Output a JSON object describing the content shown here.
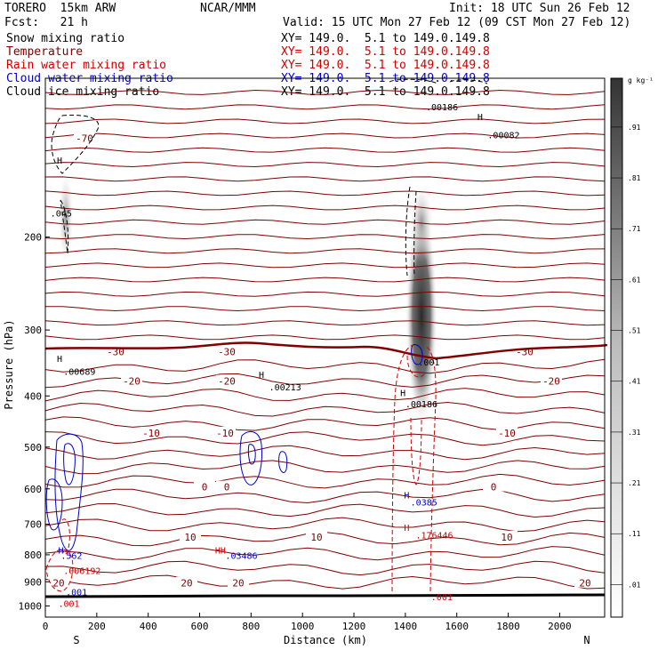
{
  "header": {
    "model": "TORERO  15km ARW",
    "org": "NCAR/MMM",
    "init": "Init: 18 UTC Sun 26 Feb 12",
    "fcst": "Fcst:   21 h",
    "valid": "Valid: 15 UTC Mon 27 Feb 12 (09 CST Mon 27 Feb 12)",
    "fields": [
      {
        "name": "Snow mixing ratio",
        "xy": "XY= 149.0.  5.1 to 149.0.149.8",
        "color": "#000000"
      },
      {
        "name": "Temperature",
        "xy": "XY= 149.0.  5.1 to 149.0.149.8",
        "color": "#800000"
      },
      {
        "name": "Rain water mixing ratio",
        "xy": "XY= 149.0.  5.1 to 149.0.149.8",
        "color": "#cc0000"
      },
      {
        "name": "Cloud water mixing ratio",
        "xy": "XY= 149.0.  5.1 to 149.0.149.8",
        "color": "#0000cc"
      },
      {
        "name": "Cloud ice mixing ratio",
        "xy": "XY= 149.0.  5.1 to 149.0.149.8",
        "color": "#000000"
      }
    ]
  },
  "chart_data": {
    "type": "cross-section",
    "xlabel": "Distance (km)",
    "ylabel": "Pressure (hPa)",
    "xlim": [
      0,
      2175
    ],
    "ylim": [
      1050,
      100
    ],
    "y_scale": "log",
    "x_ticks": [
      0,
      200,
      400,
      600,
      800,
      1000,
      1200,
      1400,
      1600,
      1800,
      2000
    ],
    "y_ticks": [
      200,
      300,
      400,
      500,
      600,
      700,
      800,
      900,
      1000
    ],
    "end_labels": {
      "left": "S",
      "right": "N"
    },
    "colorbar": {
      "unit": "g kg⁻¹",
      "labels": [
        ".01",
        ".11",
        ".21",
        ".31",
        ".41",
        ".51",
        ".61",
        ".71",
        ".81",
        ".91"
      ]
    },
    "temperature_contours": [
      {
        "label": "-70",
        "p": 130
      },
      {
        "label": "-30",
        "p": 330
      },
      {
        "label": "-20",
        "p": 375
      },
      {
        "label": "-10",
        "p": 470
      },
      {
        "label": "0",
        "p": 595
      },
      {
        "label": "10",
        "p": 740
      },
      {
        "label": "20",
        "p": 905
      }
    ],
    "annotations": [
      {
        "text": "H",
        "color": "#000000",
        "x": 45,
        "p": 145
      },
      {
        "text": ".00186",
        "color": "#000000",
        "x": 1480,
        "p": 115
      },
      {
        "text": "H",
        "color": "#000000",
        "x": 1680,
        "p": 120
      },
      {
        "text": ".00082",
        "color": "#000000",
        "x": 1720,
        "p": 130
      },
      {
        "text": ".045",
        "color": "#000000",
        "x": 20,
        "p": 183
      },
      {
        "text": "H",
        "color": "#000000",
        "x": 45,
        "p": 345
      },
      {
        "text": ".00689",
        "color": "#000000",
        "x": 70,
        "p": 365
      },
      {
        "text": "H",
        "color": "#000000",
        "x": 830,
        "p": 370
      },
      {
        "text": ".00213",
        "color": "#000000",
        "x": 870,
        "p": 390
      },
      {
        "text": ".001",
        "color": "#000000",
        "x": 1450,
        "p": 350
      },
      {
        "text": "H",
        "color": "#000000",
        "x": 1380,
        "p": 400
      },
      {
        "text": ".00186",
        "color": "#000000",
        "x": 1400,
        "p": 420
      },
      {
        "text": "H",
        "color": "#0000cc",
        "x": 1395,
        "p": 625
      },
      {
        "text": ".0385",
        "color": "#0000cc",
        "x": 1420,
        "p": 645
      },
      {
        "text": "H",
        "color": "#cc0000",
        "x": 1395,
        "p": 720
      },
      {
        "text": ".176446",
        "color": "#cc0000",
        "x": 1440,
        "p": 745
      },
      {
        "text": "H",
        "color": "#0000cc",
        "x": 50,
        "p": 795
      },
      {
        "text": ".562",
        "color": "#0000cc",
        "x": 60,
        "p": 815
      },
      {
        "text": "HH",
        "color": "#cc0000",
        "x": 660,
        "p": 795
      },
      {
        "text": ".03486",
        "color": "#0000cc",
        "x": 700,
        "p": 815
      },
      {
        "text": ".006192",
        "color": "#cc0000",
        "x": 70,
        "p": 870
      },
      {
        "text": ".001",
        "color": "#0000cc",
        "x": 80,
        "p": 955
      },
      {
        "text": ".001",
        "color": "#cc0000",
        "x": 1500,
        "p": 975
      },
      {
        "text": ".001",
        "color": "#cc0000",
        "x": 50,
        "p": 1005
      }
    ],
    "colors": {
      "temperature": "#800000",
      "rain": "#cc0000",
      "cloud_water": "#0000cc",
      "cloud_ice": "#000000",
      "snow_shading": "#4a4a4a"
    }
  }
}
